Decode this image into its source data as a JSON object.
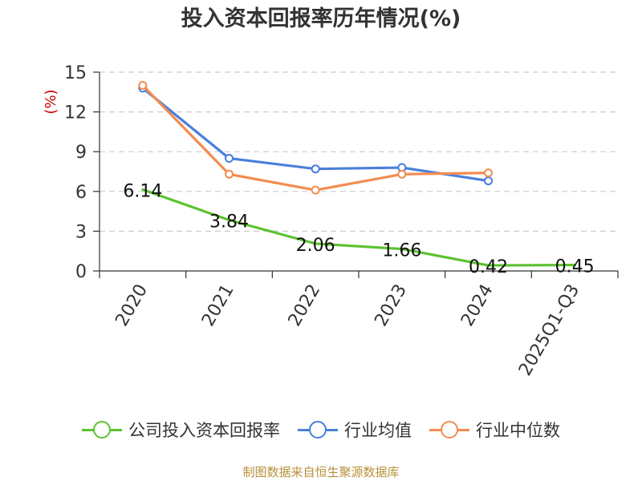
{
  "title": "投入资本回报率历年情况(%)",
  "source": "制图数据来自恒生聚源数据库",
  "chart_data": {
    "type": "line",
    "title": "投入资本回报率历年情况(%)",
    "ylabel": "(%)",
    "xlabel": "",
    "categories": [
      "2020",
      "2021",
      "2022",
      "2023",
      "2024",
      "2025Q1-Q3"
    ],
    "ylim": [
      0,
      15
    ],
    "yticks": [
      0,
      3,
      6,
      9,
      12,
      15
    ],
    "grid": true,
    "legend_position": "bottom",
    "series": [
      {
        "name": "公司投入资本回报率",
        "color": "#5cc22e",
        "values": [
          6.14,
          3.84,
          2.06,
          1.66,
          0.42,
          0.45
        ],
        "labels": [
          "6.14",
          "3.84",
          "2.06",
          "1.66",
          "0.42",
          "0.45"
        ],
        "show_markers": false
      },
      {
        "name": "行业均值",
        "color": "#4a7fdc",
        "values": [
          13.8,
          8.5,
          7.7,
          7.8,
          6.8,
          null
        ],
        "show_markers": true
      },
      {
        "name": "行业中位数",
        "color": "#f28c4f",
        "values": [
          14.0,
          7.3,
          6.1,
          7.3,
          7.4,
          null
        ],
        "show_markers": true
      }
    ]
  },
  "colors": {
    "title": "#333333",
    "axis": "#333333",
    "grid": "#cccccc",
    "ylabel": "#cc0000",
    "source": "#b8913a"
  }
}
